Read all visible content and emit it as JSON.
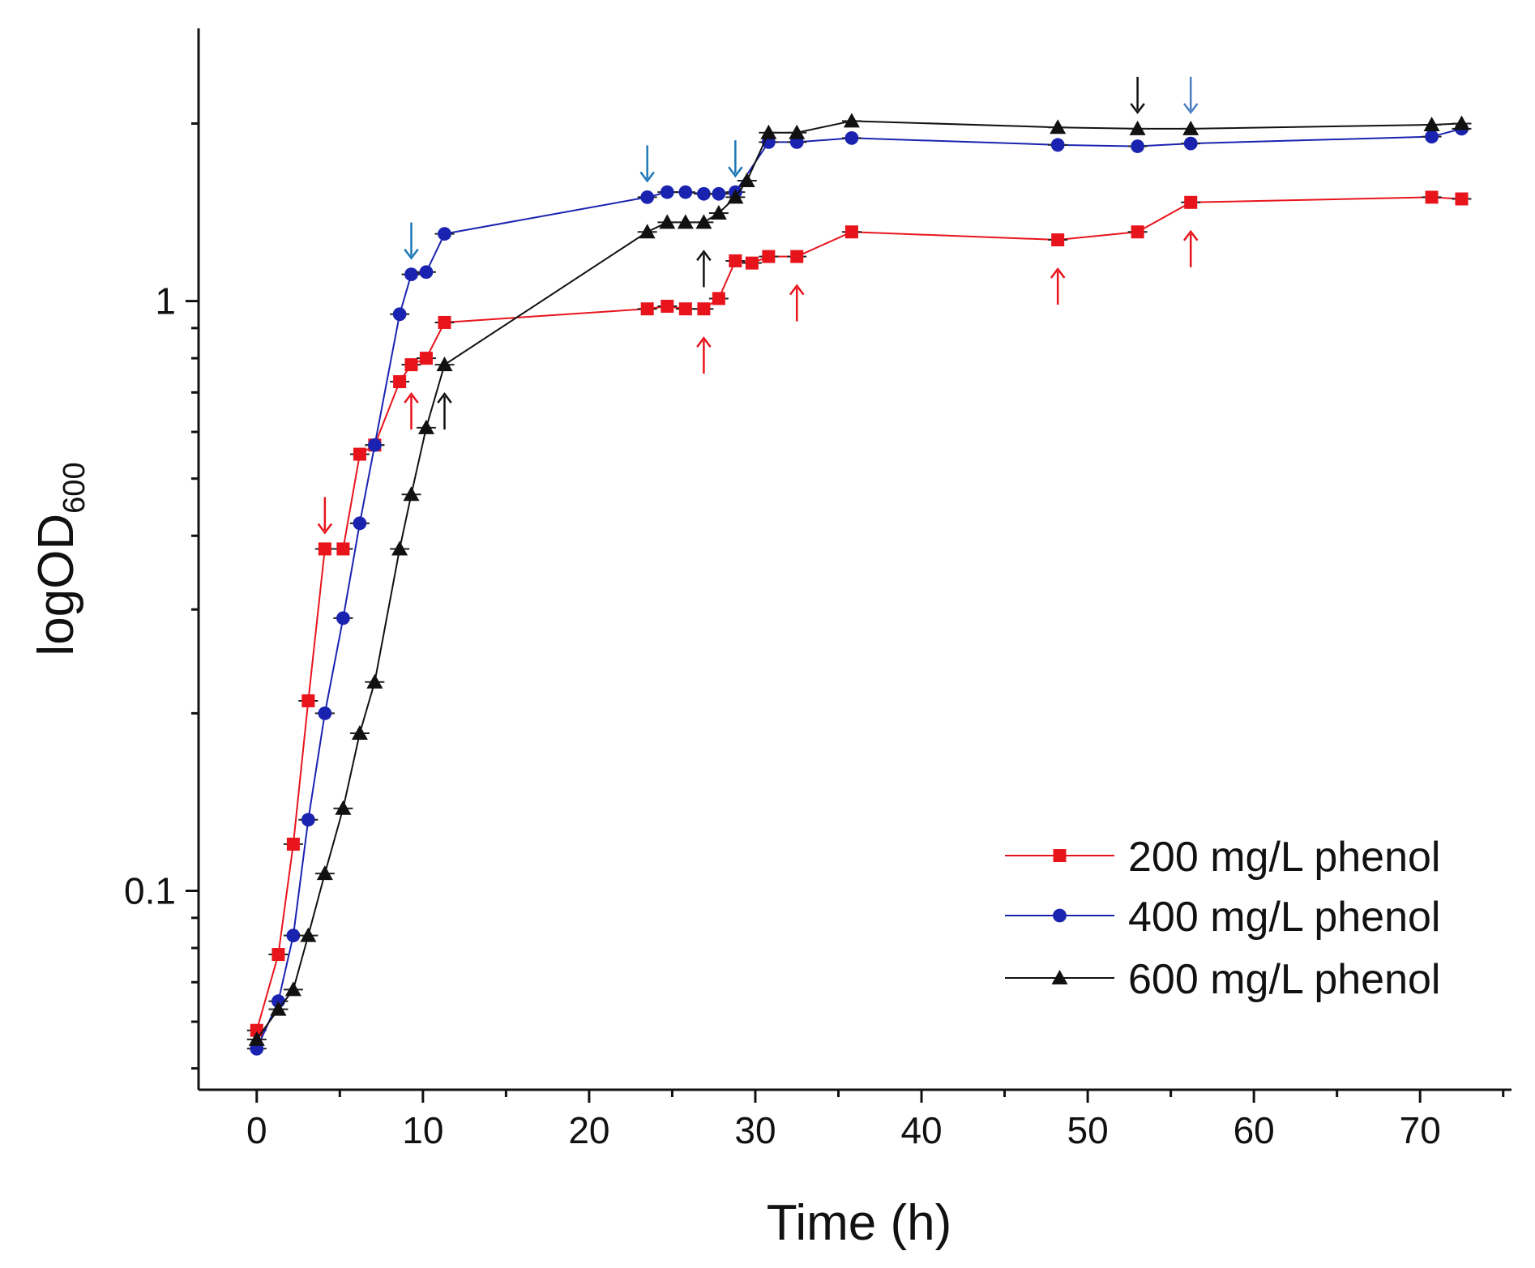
{
  "chart_data": {
    "type": "line",
    "xlabel": "Time (h)",
    "ylabel": {
      "main": "logOD",
      "sub": "600"
    },
    "xscale": "linear",
    "yscale": "log",
    "xlim": [
      -3.5,
      75.5
    ],
    "ylim": [
      0.046,
      2.9
    ],
    "xticks": [
      0,
      10,
      20,
      30,
      40,
      50,
      60,
      70
    ],
    "xtick_labels": [
      "0",
      "10",
      "20",
      "30",
      "40",
      "50",
      "60",
      "70"
    ],
    "yticks_labeled": [
      0.1,
      1
    ],
    "ytick_labels": [
      "0.1",
      "1"
    ],
    "legend_position": "bottom-right",
    "series": [
      {
        "name": "200 mg/L phenol",
        "color": "#e8141c",
        "marker": "square",
        "points": [
          [
            0,
            0.058
          ],
          [
            1.3,
            0.078
          ],
          [
            2.2,
            0.12
          ],
          [
            3.1,
            0.21
          ],
          [
            4.1,
            0.38
          ],
          [
            5.2,
            0.38
          ],
          [
            6.2,
            0.55
          ],
          [
            7.1,
            0.57
          ],
          [
            8.6,
            0.73
          ],
          [
            9.3,
            0.78
          ],
          [
            10.2,
            0.8
          ],
          [
            11.3,
            0.92
          ],
          [
            23.5,
            0.97
          ],
          [
            24.7,
            0.98
          ],
          [
            25.8,
            0.97
          ],
          [
            26.9,
            0.97
          ],
          [
            27.8,
            1.01
          ],
          [
            28.8,
            1.17
          ],
          [
            29.8,
            1.16
          ],
          [
            30.8,
            1.19
          ],
          [
            32.5,
            1.19
          ],
          [
            35.8,
            1.31
          ],
          [
            48.2,
            1.27
          ],
          [
            53,
            1.31
          ],
          [
            56.2,
            1.47
          ],
          [
            70.7,
            1.5
          ],
          [
            72.5,
            1.49
          ]
        ]
      },
      {
        "name": "400 mg/L phenol",
        "color": "#1a23b0",
        "marker": "circle",
        "points": [
          [
            0,
            0.054
          ],
          [
            1.3,
            0.065
          ],
          [
            2.2,
            0.084
          ],
          [
            3.1,
            0.132
          ],
          [
            4.1,
            0.2
          ],
          [
            5.2,
            0.29
          ],
          [
            6.2,
            0.42
          ],
          [
            7.1,
            0.57
          ],
          [
            8.6,
            0.95
          ],
          [
            9.3,
            1.11
          ],
          [
            10.2,
            1.12
          ],
          [
            11.3,
            1.3
          ],
          [
            23.5,
            1.5
          ],
          [
            24.7,
            1.53
          ],
          [
            25.8,
            1.53
          ],
          [
            26.9,
            1.52
          ],
          [
            27.8,
            1.52
          ],
          [
            28.8,
            1.53
          ],
          [
            30.8,
            1.86
          ],
          [
            32.5,
            1.86
          ],
          [
            35.8,
            1.89
          ],
          [
            48.2,
            1.84
          ],
          [
            53,
            1.83
          ],
          [
            56.2,
            1.85
          ],
          [
            70.7,
            1.9
          ],
          [
            72.5,
            1.96
          ]
        ]
      },
      {
        "name": "600 mg/L phenol",
        "color": "#111111",
        "marker": "triangle",
        "points": [
          [
            0,
            0.056
          ],
          [
            1.3,
            0.063
          ],
          [
            2.2,
            0.068
          ],
          [
            3.1,
            0.084
          ],
          [
            4.1,
            0.107
          ],
          [
            5.2,
            0.138
          ],
          [
            6.2,
            0.185
          ],
          [
            7.1,
            0.226
          ],
          [
            8.6,
            0.38
          ],
          [
            9.3,
            0.47
          ],
          [
            10.2,
            0.61
          ],
          [
            11.3,
            0.78
          ],
          [
            23.5,
            1.31
          ],
          [
            24.7,
            1.36
          ],
          [
            25.8,
            1.36
          ],
          [
            26.9,
            1.36
          ],
          [
            27.8,
            1.41
          ],
          [
            28.8,
            1.5
          ],
          [
            29.5,
            1.6
          ],
          [
            30.8,
            1.93
          ],
          [
            32.5,
            1.93
          ],
          [
            35.8,
            2.02
          ],
          [
            48.2,
            1.97
          ],
          [
            53,
            1.96
          ],
          [
            56.2,
            1.96
          ],
          [
            70.7,
            1.99
          ],
          [
            72.5,
            2.0
          ]
        ]
      }
    ],
    "annotations": [
      {
        "type": "arrow-down",
        "color": "#e8141c",
        "x": 4.1,
        "y": 0.38
      },
      {
        "type": "arrow-up",
        "color": "#e8141c",
        "x": 9.3,
        "y": 0.78
      },
      {
        "type": "arrow-up",
        "color": "#e8141c",
        "x": 26.9,
        "y": 0.97
      },
      {
        "type": "arrow-up",
        "color": "#e8141c",
        "x": 32.5,
        "y": 1.19
      },
      {
        "type": "arrow-up",
        "color": "#e8141c",
        "x": 48.2,
        "y": 1.27
      },
      {
        "type": "arrow-up",
        "color": "#e8141c",
        "x": 56.2,
        "y": 1.47
      },
      {
        "type": "arrow-down",
        "color": "#1e78b8",
        "x": 9.3,
        "y": 1.11
      },
      {
        "type": "arrow-down",
        "color": "#1e78b8",
        "x": 23.5,
        "y": 1.5
      },
      {
        "type": "arrow-down",
        "color": "#1e78b8",
        "x": 28.8,
        "y": 1.53
      },
      {
        "type": "arrow-down",
        "color": "#4a7fc4",
        "x": 56.2,
        "y": 1.96
      },
      {
        "type": "arrow-up",
        "color": "#111111",
        "x": 11.3,
        "y": 0.78
      },
      {
        "type": "arrow-up",
        "color": "#111111",
        "x": 26.9,
        "y": 1.36
      },
      {
        "type": "arrow-down",
        "color": "#111111",
        "x": 53,
        "y": 1.96
      }
    ]
  }
}
